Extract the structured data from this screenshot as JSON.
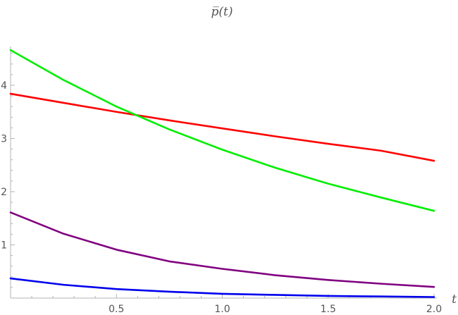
{
  "chart_data": {
    "type": "line",
    "title": "p̅(t)",
    "xlabel": "t",
    "ylabel": "",
    "xlim": [
      0,
      2.0
    ],
    "ylim": [
      0,
      4.7
    ],
    "x_ticks": [
      {
        "value": 0.5,
        "label": "0.5"
      },
      {
        "value": 1.0,
        "label": "1.0"
      },
      {
        "value": 1.5,
        "label": "1.5"
      },
      {
        "value": 2.0,
        "label": "2.0"
      }
    ],
    "y_ticks": [
      {
        "value": 1,
        "label": "1"
      },
      {
        "value": 2,
        "label": "2"
      },
      {
        "value": 3,
        "label": "3"
      },
      {
        "value": 4,
        "label": "4"
      }
    ],
    "x": [
      0,
      0.25,
      0.5,
      0.75,
      1.0,
      1.25,
      1.5,
      1.75,
      2.0
    ],
    "series": [
      {
        "color": "#ff0000",
        "values": [
          3.84,
          3.67,
          3.5,
          3.34,
          3.19,
          3.04,
          2.9,
          2.77,
          2.58
        ]
      },
      {
        "color": "#00ee00",
        "values": [
          4.66,
          4.1,
          3.6,
          3.17,
          2.79,
          2.45,
          2.15,
          1.89,
          1.64
        ]
      },
      {
        "color": "#800080",
        "values": [
          1.61,
          1.21,
          0.91,
          0.69,
          0.55,
          0.43,
          0.34,
          0.27,
          0.21
        ]
      },
      {
        "color": "#0000ee",
        "values": [
          0.37,
          0.25,
          0.17,
          0.12,
          0.08,
          0.06,
          0.04,
          0.03,
          0.02
        ]
      }
    ],
    "grid": false,
    "legend": "none"
  }
}
